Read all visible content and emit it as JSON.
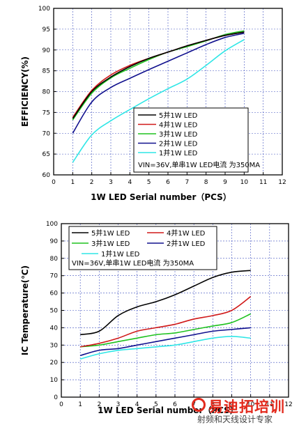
{
  "chart_data": [
    {
      "type": "line",
      "xlabel": "1W  LED Serial number（PCS）",
      "ylabel": "EFFICIENCY(%)",
      "xlim": [
        0,
        12
      ],
      "ylim": [
        60,
        100
      ],
      "xticks": [
        "0",
        "1",
        "2",
        "3",
        "4",
        "5",
        "6",
        "7",
        "8",
        "9",
        "10",
        "11",
        "12"
      ],
      "yticks": [
        "60",
        "65",
        "70",
        "75",
        "80",
        "85",
        "90",
        "95",
        "100"
      ],
      "grid": true,
      "legend_placement": "bottom-right",
      "note": "VIN=36V,单串1W LED电流 为350MA",
      "x": [
        1,
        2,
        3,
        4,
        5,
        6,
        7,
        8,
        9,
        10
      ],
      "series": [
        {
          "name": "5并1W LED",
          "color": "#000000",
          "values": [
            73.5,
            80,
            83.5,
            86,
            88,
            89.5,
            91,
            92.3,
            93.5,
            94.3
          ]
        },
        {
          "name": "4并1W LED",
          "color": "#d01818",
          "values": [
            73.8,
            80.3,
            84,
            86.3,
            88,
            89.5,
            91,
            92.3,
            93.5,
            94.3
          ]
        },
        {
          "name": "3并1W LED",
          "color": "#1ec21e",
          "values": [
            73.2,
            79.6,
            83.3,
            85.6,
            87.7,
            89.5,
            90.8,
            92.2,
            93.7,
            94.6
          ]
        },
        {
          "name": "2并1W LED",
          "color": "#10108e",
          "values": [
            70,
            77.5,
            81,
            83.2,
            85.3,
            87.3,
            89.3,
            91.3,
            93,
            94
          ]
        },
        {
          "name": "1并1W LED",
          "color": "#2ee6e6",
          "values": [
            63,
            69.6,
            73,
            75.7,
            78.3,
            80.7,
            83,
            86.3,
            89.8,
            92.5
          ]
        }
      ]
    },
    {
      "type": "line",
      "xlabel": "1W  LED Serial number（PCS）",
      "ylabel": "IC Temperature(℃)",
      "xlim": [
        0,
        12
      ],
      "ylim": [
        0,
        100
      ],
      "xticks": [
        "0",
        "1",
        "2",
        "3",
        "4",
        "5",
        "6",
        "7",
        "8",
        "9",
        "10",
        "11",
        "12"
      ],
      "yticks": [
        "0",
        "10",
        "20",
        "30",
        "40",
        "50",
        "60",
        "70",
        "80",
        "90",
        "100"
      ],
      "grid": true,
      "legend_placement": "top-left",
      "note": "VIN=36V,单串1W LED电流 为350MA",
      "x": [
        1,
        2,
        3,
        4,
        5,
        6,
        7,
        8,
        9,
        10
      ],
      "series": [
        {
          "name": "5并1W LED",
          "color": "#000000",
          "values": [
            36,
            38,
            47,
            52,
            55,
            59,
            64,
            69,
            72,
            73
          ]
        },
        {
          "name": "4并1W LED",
          "color": "#d01818",
          "values": [
            29,
            31,
            34,
            38,
            40,
            42,
            45,
            47,
            50,
            58
          ]
        },
        {
          "name": "3并1W LED",
          "color": "#1ec21e",
          "values": [
            29,
            30,
            32,
            34,
            36,
            37,
            39,
            41,
            43,
            48
          ]
        },
        {
          "name": "2并1W LED",
          "color": "#10108e",
          "values": [
            24,
            27,
            28,
            30,
            32,
            34,
            36,
            38,
            39,
            40
          ]
        },
        {
          "name": "1并1W LED",
          "color": "#2ee6e6",
          "values": [
            22,
            25,
            27,
            28,
            29,
            30,
            32,
            34,
            35,
            34
          ]
        }
      ]
    }
  ],
  "watermark": {
    "main": "易迪拓培训",
    "sub": "射频和天线设计专家",
    "color": "#e32a1d"
  }
}
